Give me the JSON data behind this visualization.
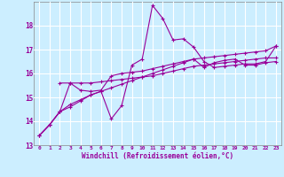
{
  "background_color": "#cceeff",
  "grid_color": "#ffffff",
  "line_color": "#990099",
  "marker": "+",
  "xlabel": "Windchill (Refroidissement éolien,°C)",
  "xlim": [
    -0.5,
    23.5
  ],
  "ylim": [
    13,
    19
  ],
  "yticks": [
    13,
    14,
    15,
    16,
    17,
    18
  ],
  "xticks": [
    0,
    1,
    2,
    3,
    4,
    5,
    6,
    7,
    8,
    9,
    10,
    11,
    12,
    13,
    14,
    15,
    16,
    17,
    18,
    19,
    20,
    21,
    22,
    23
  ],
  "series": [
    {
      "x": [
        0,
        1,
        2,
        3,
        4,
        5,
        6,
        7,
        8,
        9,
        10,
        11,
        12,
        13,
        14,
        15,
        16,
        17,
        18,
        19,
        20,
        21,
        22,
        23
      ],
      "y": [
        13.4,
        13.85,
        14.4,
        14.7,
        14.9,
        15.1,
        15.25,
        14.1,
        14.65,
        16.35,
        16.6,
        18.85,
        18.3,
        17.4,
        17.45,
        17.1,
        16.5,
        16.25,
        16.3,
        16.35,
        16.4,
        16.4,
        16.5,
        17.15
      ]
    },
    {
      "x": [
        2,
        3,
        4,
        5,
        6,
        7,
        8,
        9,
        10,
        11,
        12,
        13,
        14,
        15,
        16,
        17,
        18,
        19,
        20,
        21,
        22,
        23
      ],
      "y": [
        15.6,
        15.6,
        15.6,
        15.6,
        15.65,
        15.7,
        15.75,
        15.8,
        15.85,
        15.9,
        16.0,
        16.1,
        16.2,
        16.3,
        16.35,
        16.4,
        16.45,
        16.5,
        16.55,
        16.6,
        16.65,
        16.65
      ]
    },
    {
      "x": [
        0,
        1,
        2,
        3,
        4,
        5,
        6,
        7,
        8,
        9,
        10,
        11,
        12,
        13,
        14,
        15,
        16,
        17,
        18,
        19,
        20,
        21,
        22,
        23
      ],
      "y": [
        13.4,
        13.85,
        14.4,
        14.6,
        14.85,
        15.1,
        15.25,
        15.4,
        15.55,
        15.7,
        15.85,
        16.0,
        16.15,
        16.3,
        16.45,
        16.6,
        16.65,
        16.7,
        16.75,
        16.8,
        16.85,
        16.9,
        16.95,
        17.15
      ]
    },
    {
      "x": [
        0,
        1,
        2,
        3,
        4,
        5,
        6,
        7,
        8,
        9,
        10,
        11,
        12,
        13,
        14,
        15,
        16,
        17,
        18,
        19,
        20,
        21,
        22,
        23
      ],
      "y": [
        13.4,
        13.85,
        14.4,
        15.6,
        15.3,
        15.25,
        15.3,
        15.9,
        16.0,
        16.05,
        16.1,
        16.2,
        16.3,
        16.4,
        16.5,
        16.6,
        16.25,
        16.45,
        16.55,
        16.6,
        16.35,
        16.35,
        16.45,
        16.5
      ]
    }
  ]
}
